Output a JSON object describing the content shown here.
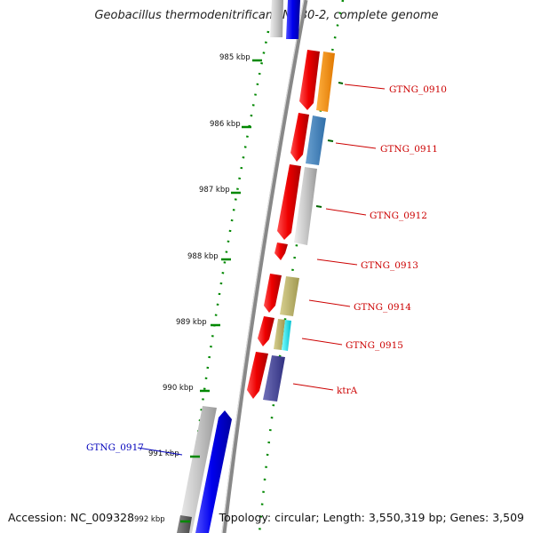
{
  "title": "Geobacillus thermodenitrificans NG80-2, complete genome",
  "footer": {
    "accession": "Accession: NC_009328",
    "topology": "Topology: circular; Length: 3,550,319 bp; Genes: 3,509"
  },
  "ticks": [
    "985 kbp",
    "986 kbp",
    "987 kbp",
    "988 kbp",
    "989 kbp",
    "990 kbp",
    "991 kbp",
    "992 kbp"
  ],
  "genes": [
    {
      "label": "GTNG_0910",
      "color": "#cc0000"
    },
    {
      "label": "GTNG_0911",
      "color": "#cc0000"
    },
    {
      "label": "GTNG_0912",
      "color": "#cc0000"
    },
    {
      "label": "GTNG_0913",
      "color": "#cc0000"
    },
    {
      "label": "GTNG_0914",
      "color": "#cc0000"
    },
    {
      "label": "GTNG_0915",
      "color": "#cc0000"
    },
    {
      "label": "ktrA",
      "color": "#cc0000"
    },
    {
      "label": "GTNG_0917",
      "color": "#0000bb"
    }
  ],
  "colors": {
    "forward_cds": "#ee0000",
    "reverse_cds": "#0000ee",
    "backbone": "#888888",
    "tick_green": "#008800"
  }
}
